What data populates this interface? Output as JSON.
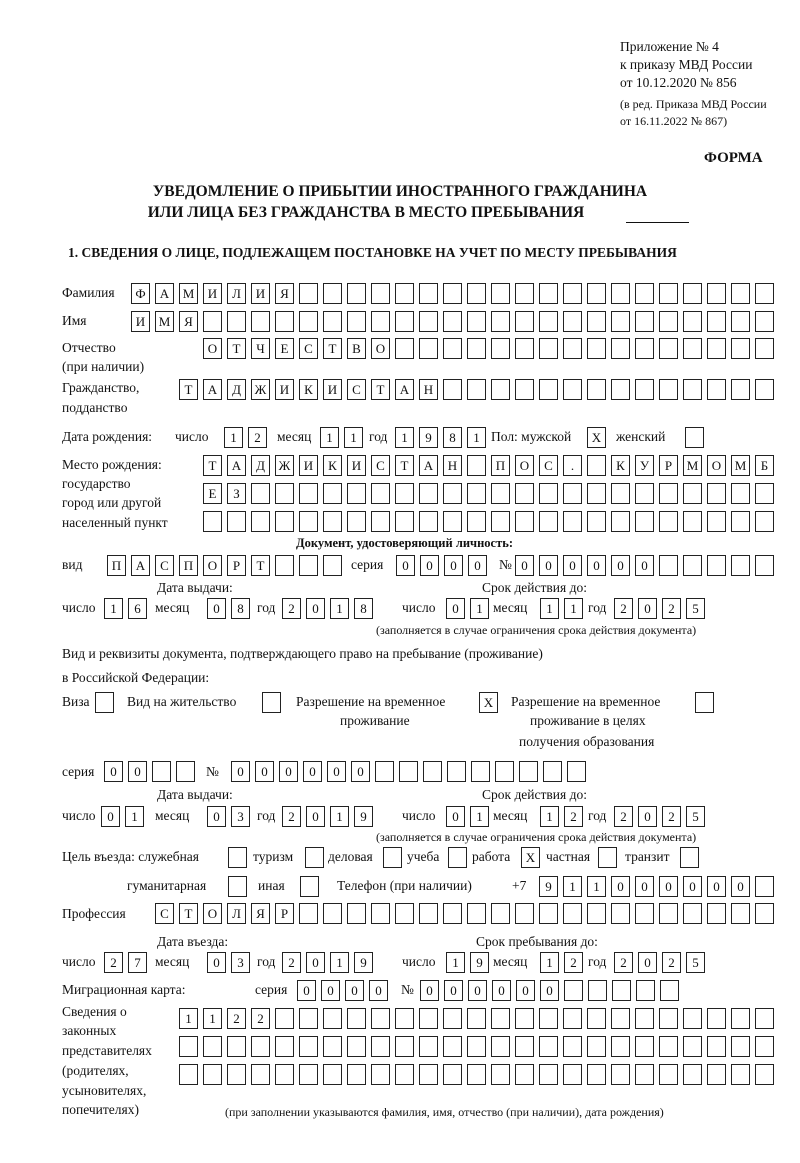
{
  "header": {
    "appendix": "Приложение № 4",
    "order": "к приказу МВД России",
    "order_date": "от 10.12.2020 № 856",
    "amend1": "(в ред. Приказа МВД России",
    "amend2": "от 16.11.2022 № 867)",
    "form_label": "ФОРМА",
    "title1": "УВЕДОМЛЕНИЕ О ПРИБЫТИИ ИНОСТРАННОГО ГРАЖДАНИНА",
    "title2": "ИЛИ ЛИЦА БЕЗ ГРАЖДАНСТВА В МЕСТО ПРЕБЫВАНИЯ",
    "section1": "1. СВЕДЕНИЯ О ЛИЦЕ, ПОДЛЕЖАЩЕМ ПОСТАНОВКЕ НА УЧЕТ ПО МЕСТУ ПРЕБЫВАНИЯ"
  },
  "labels": {
    "surname": "Фамилия",
    "name": "Имя",
    "patronymic": "Отчество",
    "patronymic_note": "(при наличии)",
    "citizenship1": "Гражданство,",
    "citizenship2": "подданство",
    "birth_date": "Дата рождения:",
    "day": "число",
    "month": "месяц",
    "year": "год",
    "sex_male": "Пол: мужской",
    "sex_female": "женский",
    "birthplace1": "Место рождения:",
    "birthplace2": "государство",
    "birthplace3": "город или другой",
    "birthplace4": "населенный пункт",
    "id_doc": "Документ, удостоверяющий личность:",
    "kind": "вид",
    "series": "серия",
    "number": "№",
    "issue_date": "Дата выдачи:",
    "valid_until": "Срок действия до:",
    "valid_note": "(заполняется в случае ограничения срока действия документа)",
    "right_doc1": "Вид и реквизиты документа, подтверждающего право на пребывание (проживание)",
    "right_doc2": "в Российской Федерации:",
    "visa": "Виза",
    "residence": "Вид на жительство",
    "temp_res1": "Разрешение на временное",
    "temp_res2": "проживание",
    "temp_edu1": "Разрешение на временное",
    "temp_edu2": "проживание в целях",
    "temp_edu3": "получения образования",
    "purpose": "Цель въезда: служебная",
    "tourism": "туризм",
    "business": "деловая",
    "study": "учеба",
    "work": "работа",
    "private": "частная",
    "transit": "транзит",
    "humanitarian": "гуманитарная",
    "other": "иная",
    "phone": "Телефон (при наличии)",
    "phone_prefix": "+7",
    "profession": "Профессия",
    "entry_date": "Дата въезда:",
    "stay_until": "Срок пребывания до:",
    "migration_card": "Миграционная карта:",
    "reps1": "Сведения о",
    "reps2": "законных",
    "reps3": "представителях",
    "reps4": "(родителях,",
    "reps5": "усыновителях,",
    "reps6": "попечителях)",
    "reps_note": "(при заполнении указываются фамилия, имя, отчество (при наличии), дата рождения)"
  },
  "values": {
    "surname": "ФАМИЛИЯ",
    "name": "ИМЯ",
    "patronymic": "ОТЧЕСТВО",
    "citizenship": "ТАДЖИКИСТАН",
    "birth_day": "12",
    "birth_month": "11",
    "birth_year": "1981",
    "sex_male": "X",
    "sex_female": "",
    "birthplace1": "ТАДЖИКИСТАН ПОС. КУРМОМБ",
    "birthplace2": "ЕЗ",
    "birthplace3": "",
    "doc_kind": "ПАСПОРТ",
    "doc_series": "0000",
    "doc_number": "000000",
    "doc_issue_day": "16",
    "doc_issue_month": "08",
    "doc_issue_year": "2018",
    "doc_valid_day": "01",
    "doc_valid_month": "11",
    "doc_valid_year": "2025",
    "visa": "",
    "residence": "",
    "temp_res": "X",
    "temp_edu": "",
    "right_series": "00",
    "right_number": "000000",
    "right_issue_day": "01",
    "right_issue_month": "03",
    "right_issue_year": "2019",
    "right_valid_day": "01",
    "right_valid_month": "12",
    "right_valid_year": "2025",
    "purpose_official": "",
    "purpose_tourism": "",
    "purpose_business": "",
    "purpose_study": "",
    "purpose_work": "X",
    "purpose_private": "",
    "purpose_transit": "",
    "purpose_humanitarian": "",
    "purpose_other": "",
    "phone": "911000000",
    "profession": "СТОЛЯР",
    "entry_day": "27",
    "entry_month": "03",
    "entry_year": "2019",
    "stay_day": "19",
    "stay_month": "12",
    "stay_year": "2025",
    "mig_series": "0000",
    "mig_number": "000000",
    "reps1": "1122",
    "reps2": "",
    "reps3": ""
  }
}
